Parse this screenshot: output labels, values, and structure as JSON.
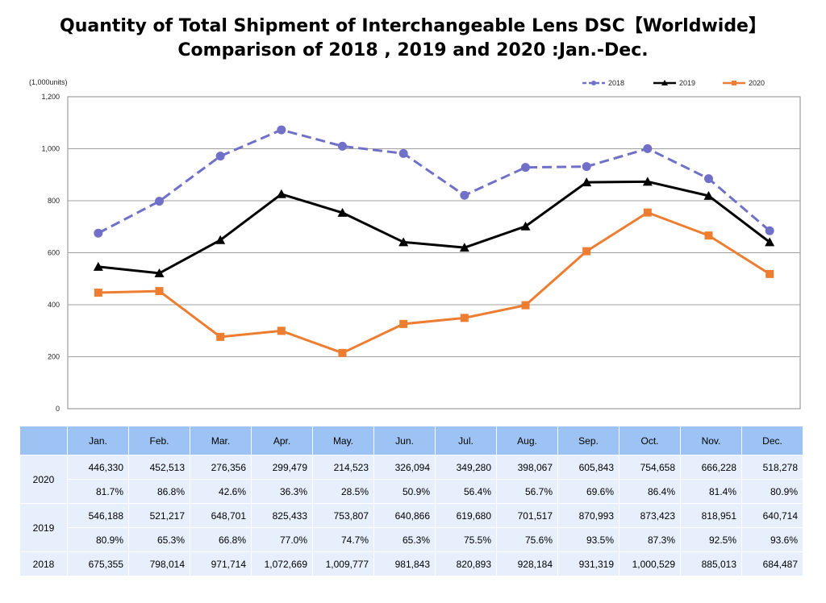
{
  "title_line1": "Quantity of Total Shipment of Interchangeable Lens DSC【Worldwide】",
  "title_line2": "Comparison of 2018 , 2019 and 2020 :Jan.-Dec.",
  "chart_data": {
    "type": "line",
    "title": "Quantity of Total Shipment of Interchangeable Lens DSC【Worldwide】 Comparison of 2018 , 2019 and 2020 :Jan.-Dec.",
    "ylabel": "(1,000units)",
    "ylim": [
      0,
      1200
    ],
    "yticks": [
      0,
      200,
      400,
      600,
      800,
      1000,
      1200
    ],
    "ytick_labels": [
      "0",
      "200",
      "400",
      "600",
      "800",
      "1,000",
      "1,200"
    ],
    "grid": true,
    "legend_position": "top-right",
    "categories": [
      "Jan.",
      "Feb.",
      "Mar.",
      "Apr.",
      "May.",
      "Jun.",
      "Jul.",
      "Aug.",
      "Sep.",
      "Oct.",
      "Nov.",
      "Dec."
    ],
    "series": [
      {
        "name": "2018",
        "color": "#7070c8",
        "style": "dashed",
        "marker": "circle",
        "values": [
          675.355,
          798.014,
          971.714,
          1072.669,
          1009.777,
          981.843,
          820.893,
          928.184,
          931.319,
          1000.529,
          885.013,
          684.487
        ]
      },
      {
        "name": "2019",
        "color": "#000000",
        "style": "solid",
        "marker": "triangle",
        "values": [
          546.188,
          521.217,
          648.701,
          825.433,
          753.807,
          640.866,
          619.68,
          701.517,
          870.993,
          873.423,
          818.951,
          640.714
        ]
      },
      {
        "name": "2020",
        "color": "#ed7d31",
        "style": "solid",
        "marker": "square",
        "values": [
          446.33,
          452.513,
          276.356,
          299.479,
          214.523,
          326.094,
          349.28,
          398.067,
          605.843,
          754.658,
          666.228,
          518.278
        ]
      }
    ]
  },
  "table": {
    "headers": [
      "Jan.",
      "Feb.",
      "Mar.",
      "Apr.",
      "May.",
      "Jun.",
      "Jul.",
      "Aug.",
      "Sep.",
      "Oct.",
      "Nov.",
      "Dec."
    ],
    "rows": [
      {
        "year": "2020",
        "units": [
          "446,330",
          "452,513",
          "276,356",
          "299,479",
          "214,523",
          "326,094",
          "349,280",
          "398,067",
          "605,843",
          "754,658",
          "666,228",
          "518,278"
        ],
        "pct": [
          "81.7%",
          "86.8%",
          "42.6%",
          "36.3%",
          "28.5%",
          "50.9%",
          "56.4%",
          "56.7%",
          "69.6%",
          "86.4%",
          "81.4%",
          "80.9%"
        ]
      },
      {
        "year": "2019",
        "units": [
          "546,188",
          "521,217",
          "648,701",
          "825,433",
          "753,807",
          "640,866",
          "619,680",
          "701,517",
          "870,993",
          "873,423",
          "818,951",
          "640,714"
        ],
        "pct": [
          "80.9%",
          "65.3%",
          "66.8%",
          "77.0%",
          "74.7%",
          "65.3%",
          "75.5%",
          "75.6%",
          "93.5%",
          "87.3%",
          "92.5%",
          "93.6%"
        ]
      },
      {
        "year": "2018",
        "units": [
          "675,355",
          "798,014",
          "971,714",
          "1,072,669",
          "1,009,777",
          "981,843",
          "820,893",
          "928,184",
          "931,319",
          "1,000,529",
          "885,013",
          "684,487"
        ]
      }
    ]
  }
}
